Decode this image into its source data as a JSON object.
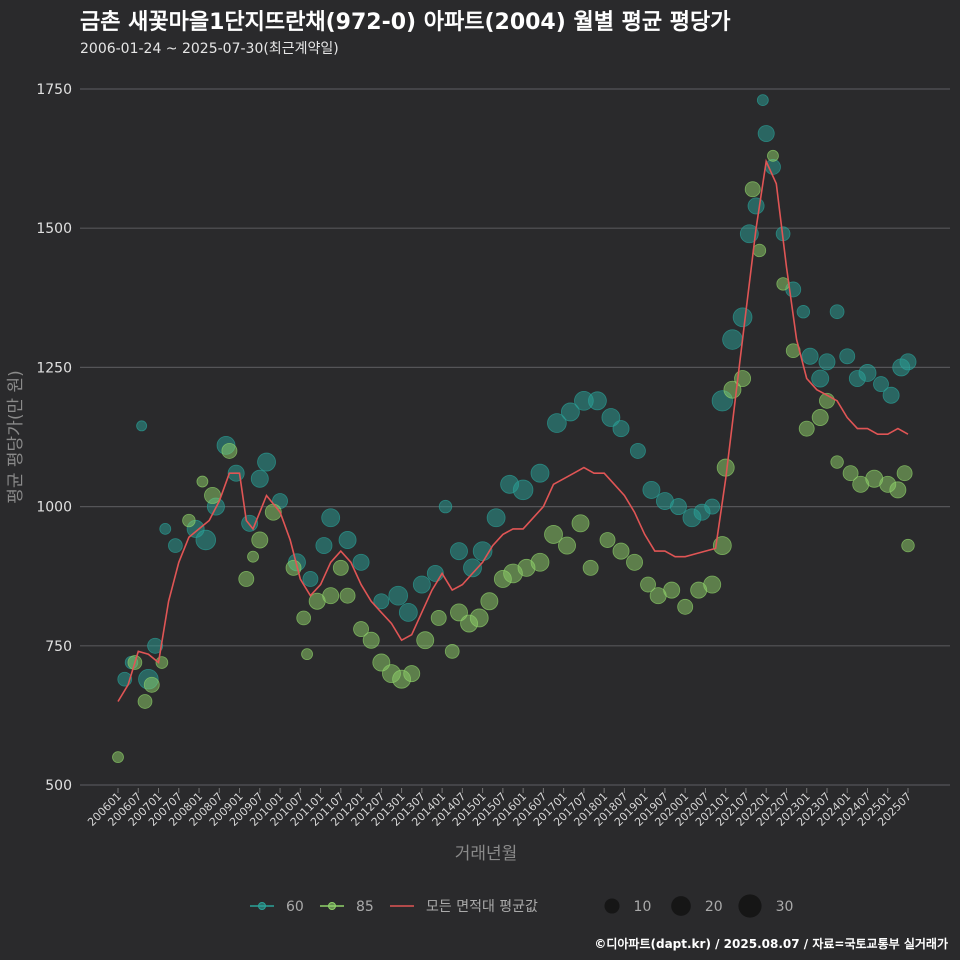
{
  "chart_data": {
    "type": "scatter",
    "title": "금촌 새꽃마을1단지뜨란채(972-0) 아파트(2004) 월별 평균 평당가",
    "subtitle": "2006-01-24 ~ 2025-07-30(최근계약일)",
    "xlabel": "거래년월",
    "ylabel": "평균 평당가(만 원)",
    "caption": "©디아파트(dapt.kr) / 2025.08.07 / 자료=국토교통부 실거래가",
    "ylim": [
      500,
      1750
    ],
    "yticks": [
      500,
      750,
      1000,
      1250,
      1500,
      1750
    ],
    "xticks": [
      "200601",
      "200607",
      "200701",
      "200707",
      "200801",
      "200807",
      "200901",
      "200907",
      "201001",
      "201007",
      "201101",
      "201107",
      "201201",
      "201207",
      "201301",
      "201307",
      "201401",
      "201407",
      "201501",
      "201507",
      "201601",
      "201607",
      "201701",
      "201707",
      "201801",
      "201807",
      "201901",
      "201907",
      "202001",
      "202007",
      "202101",
      "202107",
      "202201",
      "202207",
      "202301",
      "202307",
      "202401",
      "202407",
      "202501",
      "202507"
    ],
    "grid": true,
    "legend_position": "bottom",
    "legend": {
      "series": [
        {
          "name": "60",
          "color": "#2aa198"
        },
        {
          "name": "85",
          "color": "#8fd16a"
        },
        {
          "name": "모든 면적대 평균값",
          "color": "#e05555"
        }
      ],
      "size": [
        {
          "label": "10",
          "count": 10
        },
        {
          "label": "20",
          "count": 20
        },
        {
          "label": "30",
          "count": 30
        }
      ]
    },
    "series": [
      {
        "name": "60",
        "type": "scatter",
        "color": "#2aa198",
        "points": [
          [
            "2006-03",
            690,
            8
          ],
          [
            "2006-05",
            720,
            6
          ],
          [
            "2006-08",
            1145,
            3
          ],
          [
            "2006-10",
            690,
            20
          ],
          [
            "2006-12",
            750,
            10
          ],
          [
            "2007-03",
            960,
            4
          ],
          [
            "2007-06",
            930,
            8
          ],
          [
            "2007-12",
            960,
            14
          ],
          [
            "2008-03",
            940,
            20
          ],
          [
            "2008-06",
            1000,
            14
          ],
          [
            "2008-09",
            1110,
            16
          ],
          [
            "2008-12",
            1060,
            12
          ],
          [
            "2009-04",
            970,
            12
          ],
          [
            "2009-07",
            1050,
            14
          ],
          [
            "2009-09",
            1080,
            16
          ],
          [
            "2010-01",
            1010,
            10
          ],
          [
            "2010-06",
            900,
            14
          ],
          [
            "2010-10",
            870,
            10
          ],
          [
            "2011-02",
            930,
            12
          ],
          [
            "2011-04",
            980,
            16
          ],
          [
            "2011-09",
            940,
            14
          ],
          [
            "2012-01",
            900,
            12
          ],
          [
            "2012-07",
            830,
            10
          ],
          [
            "2012-12",
            840,
            18
          ],
          [
            "2013-03",
            810,
            16
          ],
          [
            "2013-07",
            860,
            14
          ],
          [
            "2013-11",
            880,
            12
          ],
          [
            "2014-02",
            1000,
            6
          ],
          [
            "2014-06",
            920,
            14
          ],
          [
            "2014-10",
            890,
            16
          ],
          [
            "2015-01",
            920,
            18
          ],
          [
            "2015-05",
            980,
            16
          ],
          [
            "2015-09",
            1040,
            16
          ],
          [
            "2016-01",
            1030,
            20
          ],
          [
            "2016-06",
            1060,
            16
          ],
          [
            "2016-11",
            1150,
            18
          ],
          [
            "2017-03",
            1170,
            16
          ],
          [
            "2017-07",
            1190,
            18
          ],
          [
            "2017-11",
            1190,
            16
          ],
          [
            "2018-03",
            1160,
            16
          ],
          [
            "2018-06",
            1140,
            12
          ],
          [
            "2018-11",
            1100,
            10
          ],
          [
            "2019-03",
            1030,
            14
          ],
          [
            "2019-07",
            1010,
            14
          ],
          [
            "2019-11",
            1000,
            12
          ],
          [
            "2020-03",
            980,
            16
          ],
          [
            "2020-06",
            990,
            12
          ],
          [
            "2020-09",
            1000,
            10
          ],
          [
            "2020-12",
            1190,
            22
          ],
          [
            "2021-03",
            1300,
            20
          ],
          [
            "2021-06",
            1340,
            18
          ],
          [
            "2021-08",
            1490,
            16
          ],
          [
            "2021-10",
            1540,
            12
          ],
          [
            "2021-12",
            1730,
            4
          ],
          [
            "2022-01",
            1670,
            12
          ],
          [
            "2022-03",
            1610,
            10
          ],
          [
            "2022-06",
            1490,
            8
          ],
          [
            "2022-09",
            1390,
            10
          ],
          [
            "2022-12",
            1350,
            6
          ],
          [
            "2023-02",
            1270,
            12
          ],
          [
            "2023-05",
            1230,
            14
          ],
          [
            "2023-07",
            1260,
            12
          ],
          [
            "2023-10",
            1350,
            8
          ],
          [
            "2024-01",
            1270,
            10
          ],
          [
            "2024-04",
            1230,
            12
          ],
          [
            "2024-07",
            1240,
            14
          ],
          [
            "2024-11",
            1220,
            10
          ],
          [
            "2025-02",
            1200,
            12
          ],
          [
            "2025-05",
            1250,
            14
          ],
          [
            "2025-07",
            1260,
            12
          ]
        ]
      },
      {
        "name": "85",
        "type": "scatter",
        "color": "#8fd16a",
        "points": [
          [
            "2006-01",
            550,
            4
          ],
          [
            "2006-06",
            720,
            8
          ],
          [
            "2006-09",
            650,
            8
          ],
          [
            "2006-11",
            680,
            10
          ],
          [
            "2007-02",
            720,
            5
          ],
          [
            "2007-10",
            975,
            6
          ],
          [
            "2008-02",
            1045,
            4
          ],
          [
            "2008-05",
            1020,
            12
          ],
          [
            "2008-10",
            1100,
            10
          ],
          [
            "2009-03",
            870,
            10
          ],
          [
            "2009-05",
            910,
            4
          ],
          [
            "2009-07",
            940,
            12
          ],
          [
            "2009-11",
            990,
            12
          ],
          [
            "2010-05",
            890,
            10
          ],
          [
            "2010-08",
            800,
            8
          ],
          [
            "2010-09",
            735,
            4
          ],
          [
            "2010-12",
            830,
            12
          ],
          [
            "2011-04",
            840,
            12
          ],
          [
            "2011-07",
            890,
            10
          ],
          [
            "2011-09",
            840,
            10
          ],
          [
            "2012-01",
            780,
            10
          ],
          [
            "2012-04",
            760,
            12
          ],
          [
            "2012-07",
            720,
            14
          ],
          [
            "2012-10",
            700,
            16
          ],
          [
            "2013-01",
            690,
            16
          ],
          [
            "2013-04",
            700,
            12
          ],
          [
            "2013-08",
            760,
            14
          ],
          [
            "2013-12",
            800,
            10
          ],
          [
            "2014-04",
            740,
            8
          ],
          [
            "2014-06",
            810,
            14
          ],
          [
            "2014-09",
            790,
            14
          ],
          [
            "2014-12",
            800,
            16
          ],
          [
            "2015-03",
            830,
            14
          ],
          [
            "2015-07",
            870,
            14
          ],
          [
            "2015-10",
            880,
            18
          ],
          [
            "2016-02",
            890,
            14
          ],
          [
            "2016-06",
            900,
            16
          ],
          [
            "2016-10",
            950,
            16
          ],
          [
            "2017-02",
            930,
            14
          ],
          [
            "2017-06",
            970,
            14
          ],
          [
            "2017-09",
            890,
            10
          ],
          [
            "2018-02",
            940,
            10
          ],
          [
            "2018-06",
            920,
            12
          ],
          [
            "2018-10",
            900,
            12
          ],
          [
            "2019-02",
            860,
            10
          ],
          [
            "2019-05",
            840,
            12
          ],
          [
            "2019-09",
            850,
            12
          ],
          [
            "2020-01",
            820,
            10
          ],
          [
            "2020-05",
            850,
            12
          ],
          [
            "2020-09",
            860,
            14
          ],
          [
            "2020-12",
            930,
            16
          ],
          [
            "2021-01",
            1070,
            14
          ],
          [
            "2021-03",
            1210,
            14
          ],
          [
            "2021-06",
            1230,
            12
          ],
          [
            "2021-09",
            1570,
            10
          ],
          [
            "2021-11",
            1460,
            6
          ],
          [
            "2022-03",
            1630,
            4
          ],
          [
            "2022-06",
            1400,
            6
          ],
          [
            "2022-09",
            1280,
            8
          ],
          [
            "2023-01",
            1140,
            10
          ],
          [
            "2023-05",
            1160,
            12
          ],
          [
            "2023-07",
            1190,
            10
          ],
          [
            "2023-10",
            1080,
            6
          ],
          [
            "2024-02",
            1060,
            10
          ],
          [
            "2024-05",
            1040,
            12
          ],
          [
            "2024-09",
            1050,
            14
          ],
          [
            "2025-01",
            1040,
            12
          ],
          [
            "2025-04",
            1030,
            12
          ],
          [
            "2025-06",
            1060,
            10
          ],
          [
            "2025-07",
            930,
            6
          ]
        ]
      },
      {
        "name": "모든 면적대 평균값",
        "type": "line",
        "color": "#e05555",
        "points": [
          [
            "2006-01",
            650
          ],
          [
            "2006-04",
            680
          ],
          [
            "2006-07",
            740
          ],
          [
            "2006-10",
            735
          ],
          [
            "2007-01",
            720
          ],
          [
            "2007-04",
            830
          ],
          [
            "2007-07",
            900
          ],
          [
            "2007-10",
            945
          ],
          [
            "2008-01",
            960
          ],
          [
            "2008-04",
            975
          ],
          [
            "2008-07",
            1010
          ],
          [
            "2008-10",
            1060
          ],
          [
            "2009-01",
            1060
          ],
          [
            "2009-03",
            975
          ],
          [
            "2009-05",
            960
          ],
          [
            "2009-07",
            990
          ],
          [
            "2009-09",
            1020
          ],
          [
            "2010-01",
            990
          ],
          [
            "2010-04",
            940
          ],
          [
            "2010-07",
            870
          ],
          [
            "2010-10",
            840
          ],
          [
            "2011-01",
            860
          ],
          [
            "2011-04",
            900
          ],
          [
            "2011-07",
            920
          ],
          [
            "2011-10",
            900
          ],
          [
            "2012-01",
            860
          ],
          [
            "2012-04",
            830
          ],
          [
            "2012-07",
            810
          ],
          [
            "2012-10",
            790
          ],
          [
            "2013-01",
            760
          ],
          [
            "2013-04",
            770
          ],
          [
            "2013-07",
            810
          ],
          [
            "2013-10",
            850
          ],
          [
            "2014-01",
            880
          ],
          [
            "2014-04",
            850
          ],
          [
            "2014-07",
            860
          ],
          [
            "2014-10",
            880
          ],
          [
            "2015-01",
            900
          ],
          [
            "2015-04",
            930
          ],
          [
            "2015-07",
            950
          ],
          [
            "2015-10",
            960
          ],
          [
            "2016-01",
            960
          ],
          [
            "2016-04",
            980
          ],
          [
            "2016-07",
            1000
          ],
          [
            "2016-10",
            1040
          ],
          [
            "2017-01",
            1050
          ],
          [
            "2017-04",
            1060
          ],
          [
            "2017-07",
            1070
          ],
          [
            "2017-10",
            1060
          ],
          [
            "2018-01",
            1060
          ],
          [
            "2018-04",
            1040
          ],
          [
            "2018-07",
            1020
          ],
          [
            "2018-10",
            990
          ],
          [
            "2019-01",
            950
          ],
          [
            "2019-04",
            920
          ],
          [
            "2019-07",
            920
          ],
          [
            "2019-10",
            910
          ],
          [
            "2020-01",
            910
          ],
          [
            "2020-04",
            915
          ],
          [
            "2020-07",
            920
          ],
          [
            "2020-10",
            925
          ],
          [
            "2021-01",
            1050
          ],
          [
            "2021-04",
            1200
          ],
          [
            "2021-07",
            1350
          ],
          [
            "2021-10",
            1500
          ],
          [
            "2022-01",
            1620
          ],
          [
            "2022-04",
            1580
          ],
          [
            "2022-07",
            1430
          ],
          [
            "2022-10",
            1300
          ],
          [
            "2023-01",
            1230
          ],
          [
            "2023-04",
            1210
          ],
          [
            "2023-07",
            1200
          ],
          [
            "2023-10",
            1190
          ],
          [
            "2024-01",
            1160
          ],
          [
            "2024-04",
            1140
          ],
          [
            "2024-07",
            1140
          ],
          [
            "2024-10",
            1130
          ],
          [
            "2025-01",
            1130
          ],
          [
            "2025-04",
            1140
          ],
          [
            "2025-07",
            1130
          ]
        ]
      }
    ]
  }
}
